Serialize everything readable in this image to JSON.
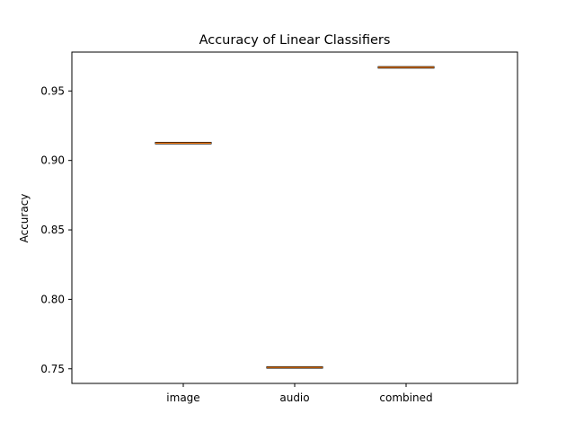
{
  "chart_data": {
    "type": "box",
    "title": "Accuracy of Linear Classifiers",
    "xlabel": "",
    "ylabel": "Accuracy",
    "categories": [
      "image",
      "audio",
      "combined"
    ],
    "values": [
      0.9125,
      0.751,
      0.967
    ],
    "ylim": [
      0.7395,
      0.978
    ],
    "yticks": [
      0.75,
      0.8,
      0.85,
      0.9,
      0.95
    ],
    "ytick_labels": [
      "0.75",
      "0.80",
      "0.85",
      "0.90",
      "0.95"
    ],
    "grid": false,
    "box_color": "#000000",
    "median_color": "#ff7f0e"
  }
}
